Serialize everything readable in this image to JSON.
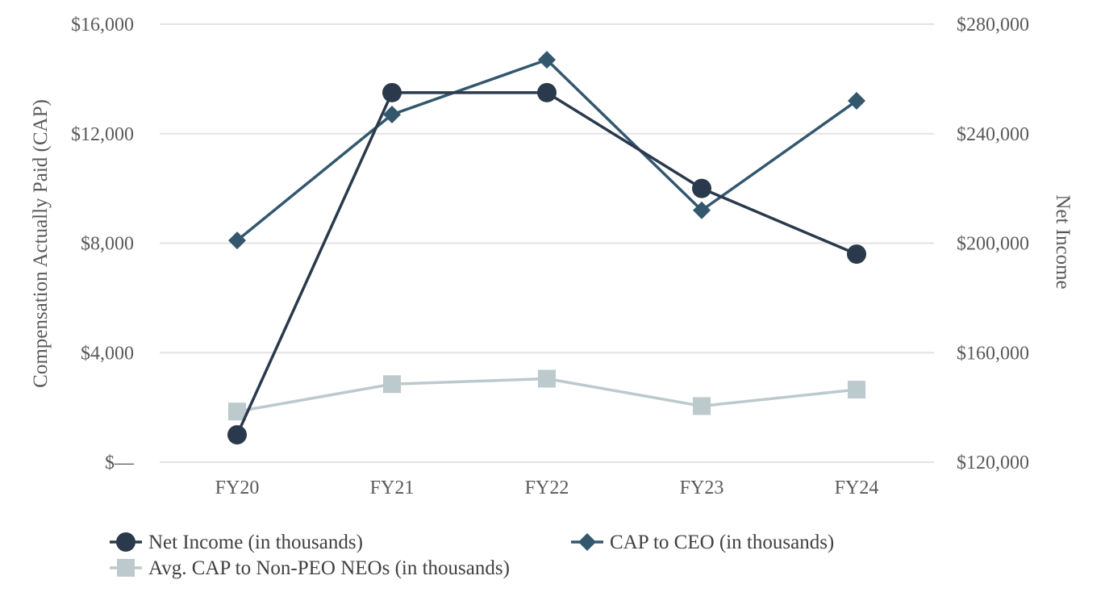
{
  "chart_data": {
    "type": "line",
    "categories": [
      "FY20",
      "FY21",
      "FY22",
      "FY23",
      "FY24"
    ],
    "left_axis": {
      "label": "Compensation Actually Paid (CAP)",
      "ylim": [
        0,
        16000
      ],
      "ticks": [
        0,
        4000,
        8000,
        12000,
        16000
      ],
      "tick_labels": [
        "$—",
        "$4,000",
        "$8,000",
        "$12,000",
        "$16,000"
      ]
    },
    "right_axis": {
      "label": "Net Income",
      "ylim": [
        120000,
        280000
      ],
      "ticks": [
        120000,
        160000,
        200000,
        240000,
        280000
      ],
      "tick_labels": [
        "$120,000",
        "$160,000",
        "$200,000",
        "$240,000",
        "$280,000"
      ]
    },
    "series": [
      {
        "name": "Net Income (in thousands)",
        "axis": "right",
        "marker": "circle",
        "color": "#2a3a4c",
        "values": [
          130000,
          255000,
          255000,
          220000,
          196000
        ]
      },
      {
        "name": "CAP to CEO (in thousands)",
        "axis": "left",
        "marker": "diamond",
        "color": "#33586e",
        "values": [
          8100,
          12700,
          14700,
          9200,
          13200
        ]
      },
      {
        "name": "Avg. CAP to Non-PEO NEOs (in thousands)",
        "axis": "left",
        "marker": "square",
        "color": "#bcc9cd",
        "values": [
          1850,
          2850,
          3050,
          2050,
          2650
        ]
      }
    ],
    "grid": true,
    "legend_position": "bottom"
  }
}
